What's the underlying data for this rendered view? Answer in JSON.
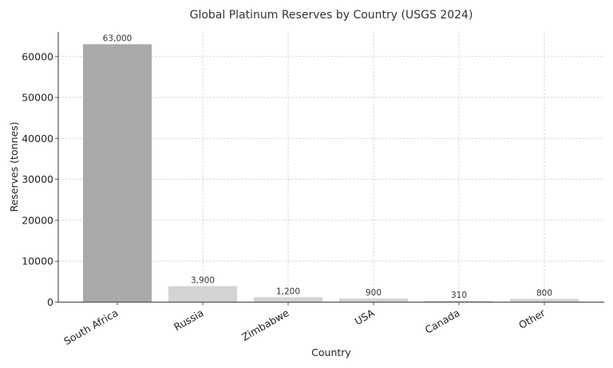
{
  "chart_data": {
    "type": "bar",
    "title": "Global Platinum Reserves by Country (USGS 2024)",
    "xlabel": "Country",
    "ylabel": "Reserves (tonnes)",
    "categories": [
      "South Africa",
      "Russia",
      "Zimbabwe",
      "USA",
      "Canada",
      "Other"
    ],
    "values": [
      63000,
      3900,
      1200,
      900,
      310,
      800
    ],
    "value_labels": [
      "63,000",
      "3,900",
      "1,200",
      "900",
      "310",
      "800"
    ],
    "bar_colors": [
      "#a9a9a9",
      "#d3d3d3",
      "#d3d3d3",
      "#d3d3d3",
      "#d3d3d3",
      "#d3d3d3"
    ],
    "yticks": [
      0,
      10000,
      20000,
      30000,
      40000,
      50000,
      60000
    ],
    "ylim": [
      0,
      66000
    ],
    "grid": true,
    "xtick_rotation": 30,
    "legend": null
  }
}
